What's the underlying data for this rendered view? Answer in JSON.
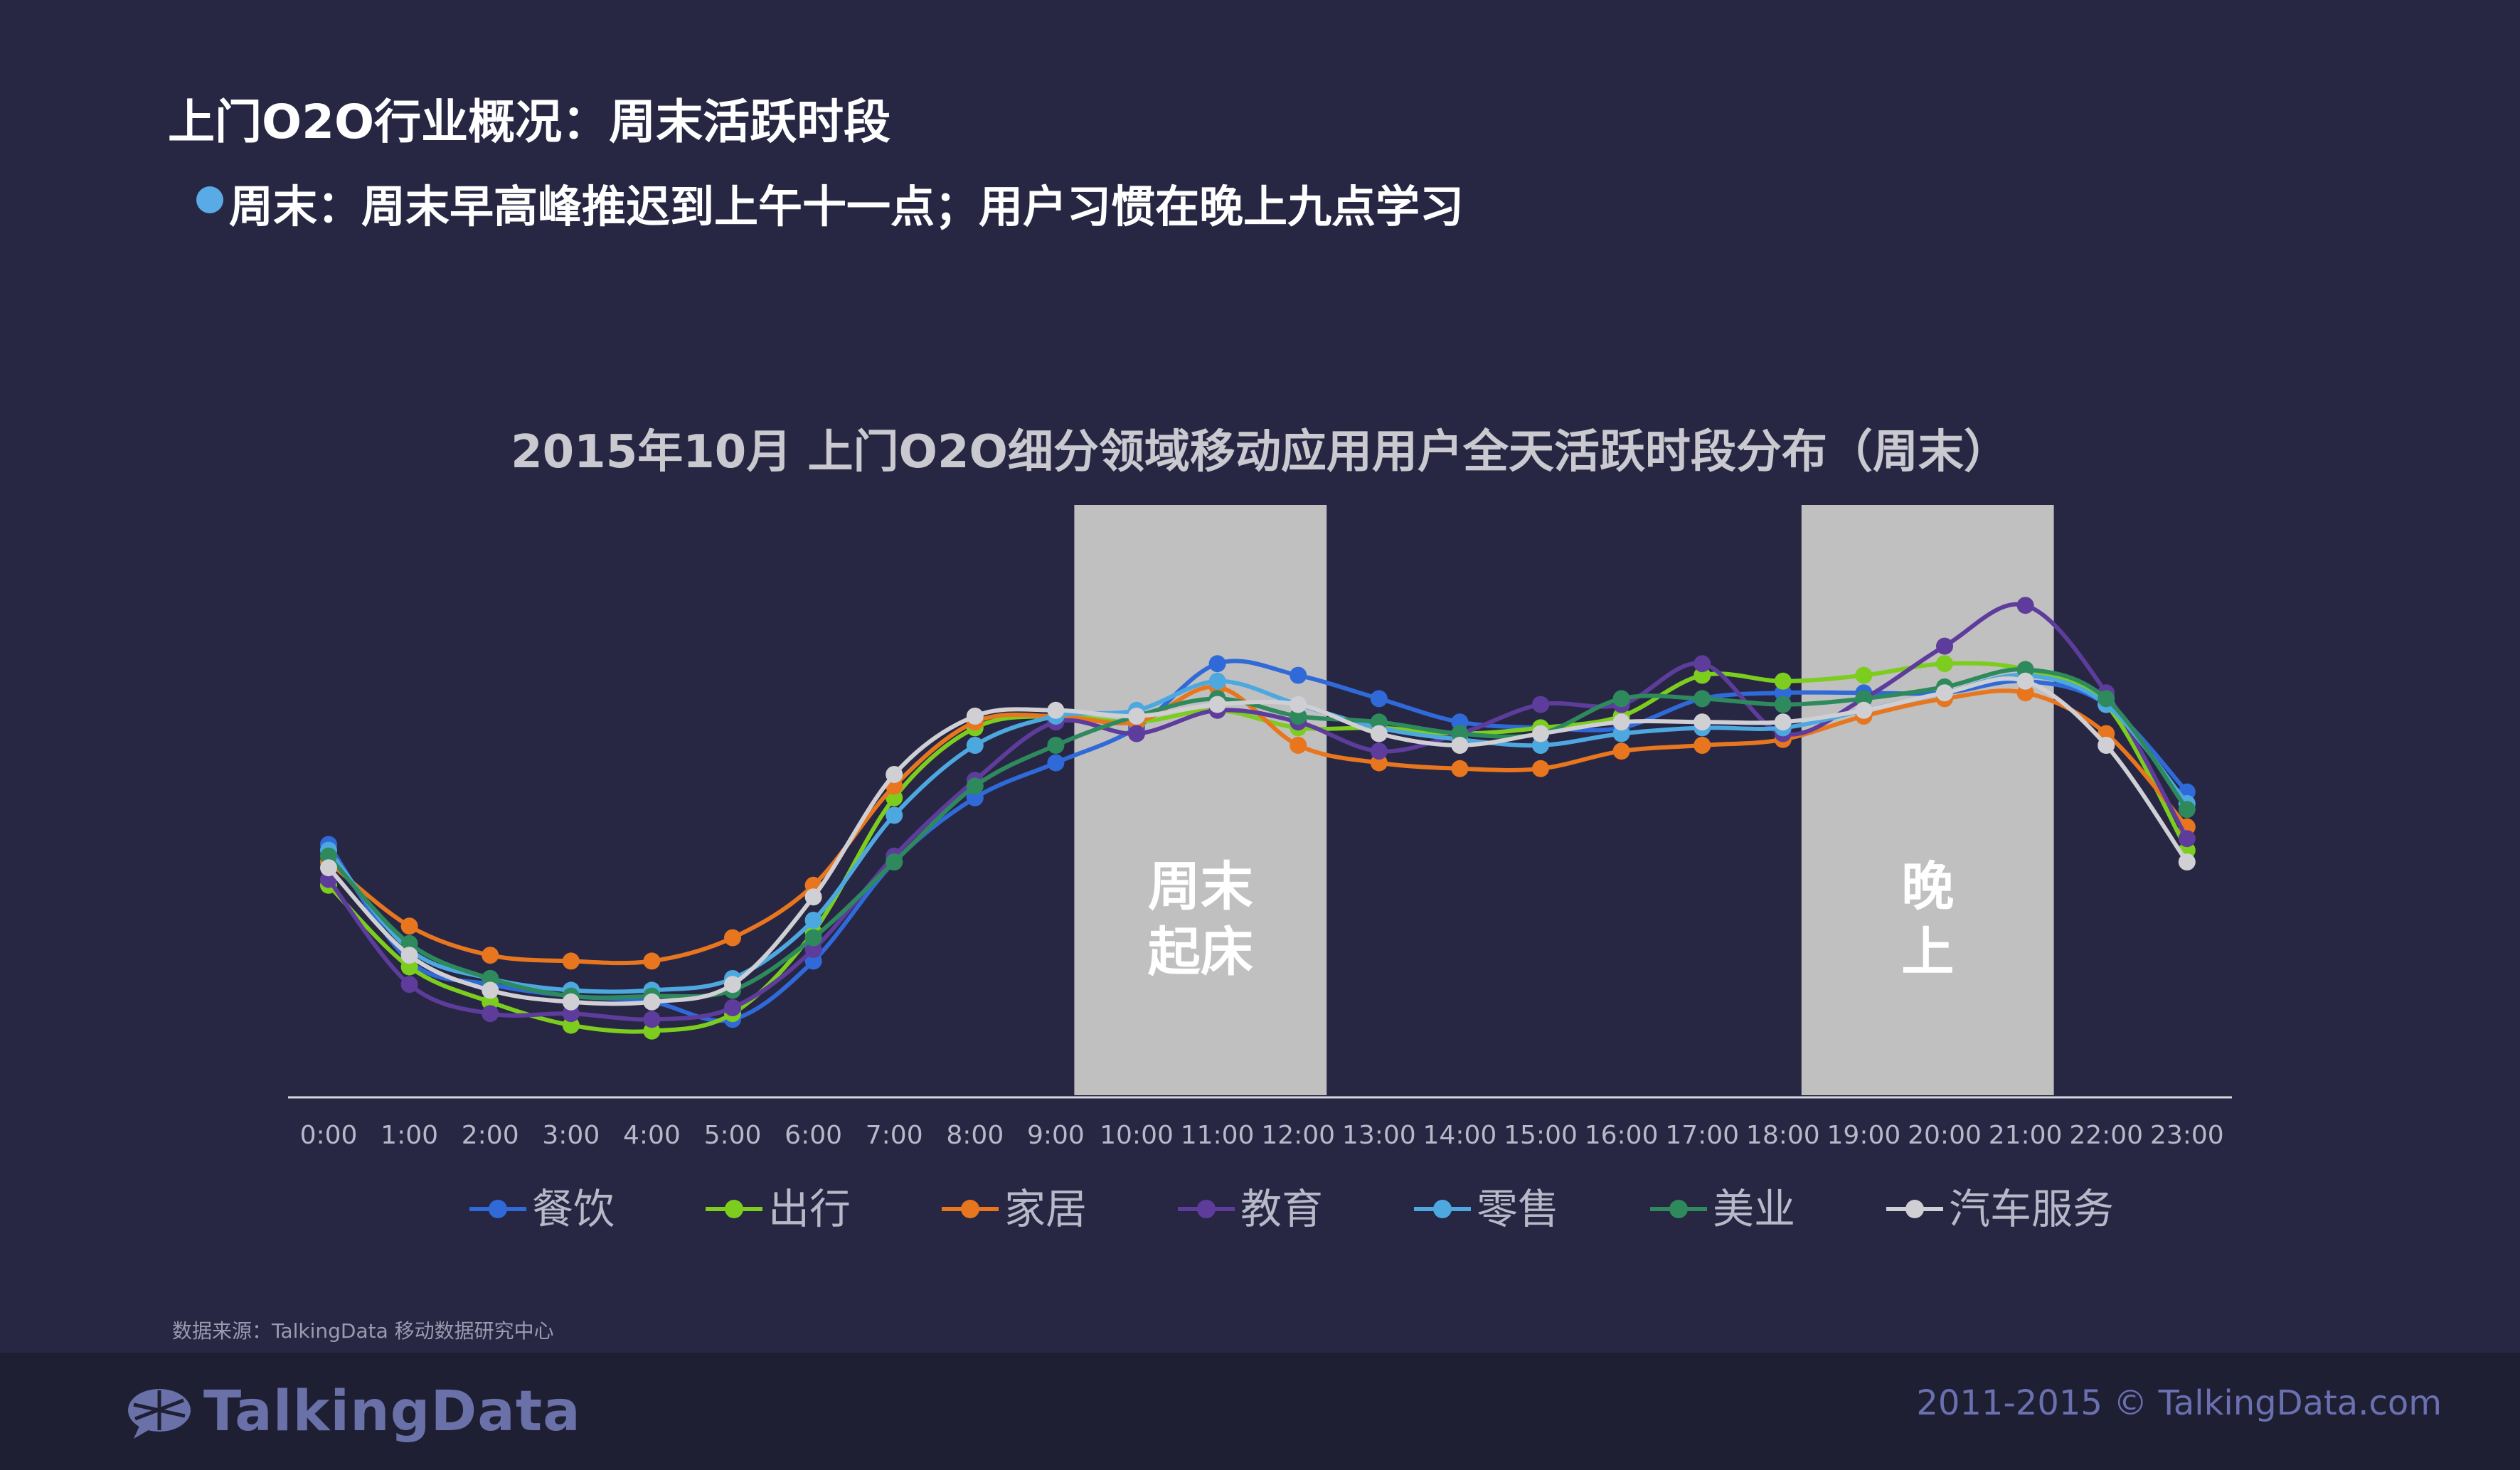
{
  "page": {
    "title": "上门O2O行业概况：周末活跃时段",
    "subtitle": "周末：周末早高峰推迟到上午十一点；用户习惯在晚上九点学习",
    "source": "数据来源：TalkingData 移动数据研究中心",
    "logo_text": "TalkingData",
    "copyright": "2011-2015 © TalkingData.com",
    "colors": {
      "background": "#272744",
      "footer": "#1f1f33",
      "bullet": "#5aaae6",
      "highlight_band": "#c0c0c0"
    }
  },
  "chart_data": {
    "type": "line",
    "title": "2015年10月 上门O2O细分领域移动应用用户全天活跃时段分布（周末）",
    "xlabel": "",
    "ylabel": "",
    "grid": false,
    "legend_position": "bottom",
    "categories": [
      "0:00",
      "1:00",
      "2:00",
      "3:00",
      "4:00",
      "5:00",
      "6:00",
      "7:00",
      "8:00",
      "9:00",
      "10:00",
      "11:00",
      "12:00",
      "13:00",
      "14:00",
      "15:00",
      "16:00",
      "17:00",
      "18:00",
      "19:00",
      "20:00",
      "21:00",
      "22:00",
      "23:00"
    ],
    "ylim": [
      0,
      100
    ],
    "highlight_bands": [
      {
        "from": "9:00",
        "to": "12:00",
        "label_lines": [
          "周末",
          "起床"
        ]
      },
      {
        "from": "18:00",
        "to": "21:00",
        "label_lines": [
          "晚",
          "上"
        ]
      }
    ],
    "series": [
      {
        "name": "餐饮",
        "color": "#2f6ad8",
        "values": [
          43,
          23,
          19,
          17,
          16,
          13,
          23,
          40,
          51,
          57,
          63,
          74,
          72,
          68,
          64,
          63,
          63,
          68,
          69,
          69,
          69,
          71,
          67,
          52
        ]
      },
      {
        "name": "出行",
        "color": "#7ccd1e",
        "values": [
          36,
          22,
          16,
          12,
          11,
          14,
          28,
          51,
          63,
          65,
          64,
          66,
          63,
          63,
          62,
          63,
          65,
          72,
          71,
          72,
          74,
          73,
          67,
          42
        ]
      },
      {
        "name": "家居",
        "color": "#e8761e",
        "values": [
          40,
          29,
          24,
          23,
          23,
          27,
          36,
          53,
          64,
          65,
          64,
          70,
          60,
          57,
          56,
          56,
          59,
          60,
          61,
          65,
          68,
          69,
          62,
          46
        ]
      },
      {
        "name": "教育",
        "color": "#5e3c9c",
        "values": [
          37,
          19,
          14,
          14,
          13,
          15,
          25,
          41,
          54,
          64,
          62,
          66,
          64,
          59,
          62,
          67,
          67,
          74,
          62,
          68,
          77,
          84,
          69,
          44
        ]
      },
      {
        "name": "零售",
        "color": "#4ea8e0",
        "values": [
          42,
          25,
          20,
          18,
          18,
          20,
          30,
          48,
          60,
          65,
          66,
          71,
          67,
          63,
          61,
          60,
          62,
          63,
          63,
          66,
          69,
          72,
          67,
          50
        ]
      },
      {
        "name": "美业",
        "color": "#2e8a5c",
        "values": [
          41,
          26,
          20,
          17,
          17,
          18,
          27,
          40,
          53,
          60,
          65,
          68,
          65,
          64,
          62,
          62,
          68,
          68,
          67,
          68,
          70,
          73,
          68,
          49
        ]
      },
      {
        "name": "汽车服务",
        "color": "#cfcfd4",
        "values": [
          39,
          24,
          18,
          16,
          16,
          19,
          34,
          55,
          65,
          66,
          65,
          67,
          67,
          62,
          60,
          62,
          64,
          64,
          64,
          66,
          69,
          71,
          60,
          40
        ]
      }
    ]
  }
}
